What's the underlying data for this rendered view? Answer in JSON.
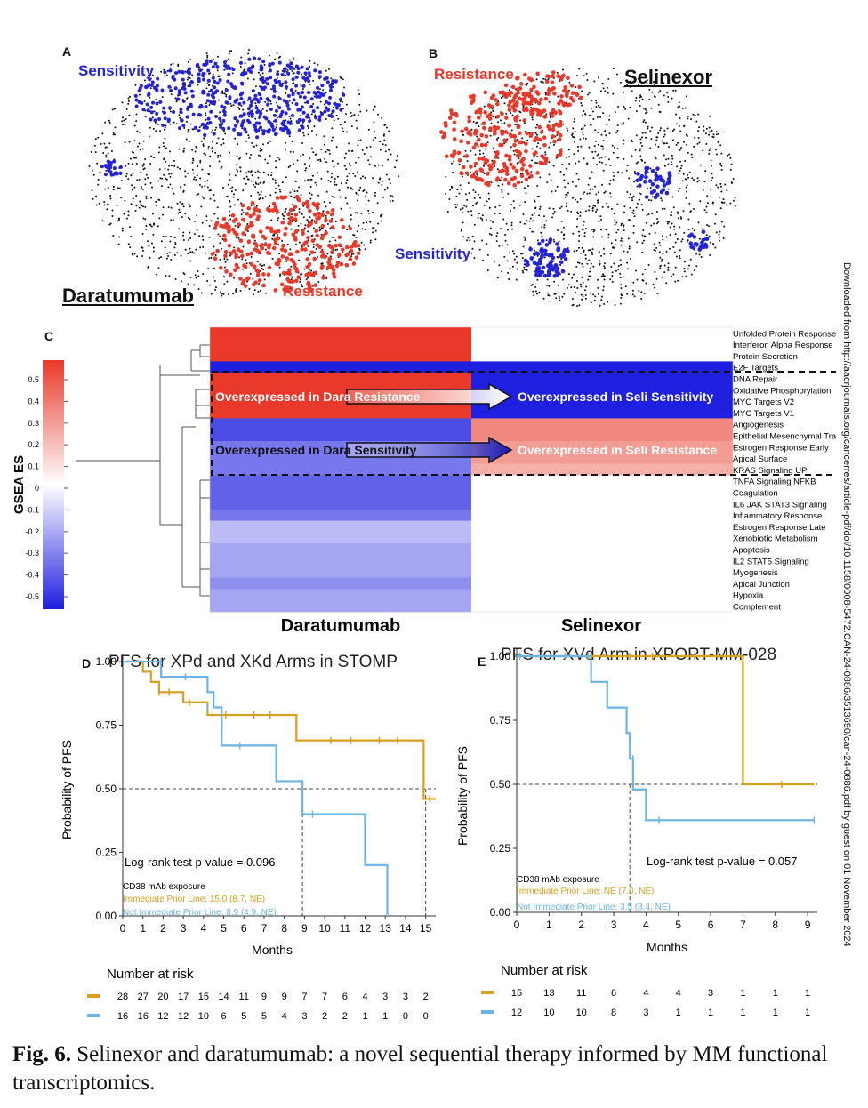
{
  "panelA": {
    "letter": "A",
    "sensitivity": "Sensitivity",
    "resistance": "Resistance",
    "drug": "Daratumumab"
  },
  "panelB": {
    "letter": "B",
    "sensitivity": "Sensitivity",
    "resistance": "Resistance",
    "drug": "Selinexor"
  },
  "panelC": {
    "letter": "C",
    "legend_title": "GSEA ES",
    "legend_ticks": [
      "0.5",
      "0.4",
      "0.3",
      "0.2",
      "0.1",
      "0",
      "-0.1",
      "-0.2",
      "-0.3",
      "-0.4",
      "-0.5"
    ],
    "col_labels": [
      "Daratumumab",
      "Selinexor"
    ],
    "pathways": [
      "Unfolded Protein Response",
      "Interferon Alpha Response",
      "Protein Secretion",
      "E2F Targets",
      "DNA Repair",
      "Oxidative Phosphorylation",
      "MYC Targets V2",
      "MYC Targets V1",
      "Angiogenesis",
      "Epithelial Mesenchymal Transition",
      "Estrogen Response Early",
      "Apical Surface",
      "KRAS Signaling UP",
      "TNFA Signaling NFKB",
      "Coagulation",
      "IL6 JAK STAT3 Signaling",
      "Inflammatory Response",
      "Estrogen Response Late",
      "Xenobiotic Metabolism",
      "Apoptosis",
      "IL2 STAT5 Signaling",
      "Myogenesis",
      "Apical Junction",
      "Hypoxia",
      "Complement"
    ],
    "dara_es": [
      0.5,
      0.5,
      0.5,
      -0.5,
      0.5,
      0.5,
      0.5,
      0.5,
      -0.4,
      -0.4,
      -0.3,
      -0.3,
      -0.3,
      -0.35,
      -0.35,
      -0.35,
      -0.3,
      -0.15,
      -0.15,
      -0.2,
      -0.2,
      -0.2,
      -0.25,
      -0.2,
      -0.2
    ],
    "seli_es": [
      0,
      0,
      0,
      -0.5,
      -0.5,
      -0.5,
      -0.5,
      -0.5,
      0.3,
      0.3,
      0.25,
      0.25,
      0.2,
      0,
      0,
      0,
      0,
      0,
      0,
      0,
      0,
      0,
      0,
      0,
      0
    ],
    "arrow1_left": "Overexpressed in Dara Resistance",
    "arrow1_right": "Overexpressed in Seli Sensitivity",
    "arrow2_left": "Overexpressed in Dara Sensitivity",
    "arrow2_right": "Overexpressed in Seli Resistance"
  },
  "panelD": {
    "letter": "D",
    "title": "PFS for XPd and XKd Arms in STOMP",
    "ylabel": "Probability of PFS",
    "xlabel": "Months",
    "pvalue": "Log-rank test p-value = 0.096",
    "legend_title": "CD38 mAb exposure",
    "legend_orange": "Immediate Prior Line: 15.0 (8.7, NE)",
    "legend_blue": "Not Immediate Prior Line: 8.9 (4.9, NE)",
    "yticks": [
      "1.00",
      "0.75",
      "0.50",
      "0.25",
      "0.00"
    ],
    "xticks": [
      "0",
      "1",
      "2",
      "3",
      "4",
      "5",
      "6",
      "7",
      "8",
      "9",
      "10",
      "11",
      "12",
      "13",
      "14",
      "15"
    ],
    "risk_title": "Number at risk",
    "risk_orange": [
      "28",
      "27",
      "20",
      "17",
      "15",
      "14",
      "11",
      "9",
      "9",
      "7",
      "7",
      "6",
      "4",
      "3",
      "3",
      "2"
    ],
    "risk_blue": [
      "16",
      "16",
      "12",
      "12",
      "10",
      "6",
      "5",
      "5",
      "4",
      "3",
      "2",
      "2",
      "1",
      "1",
      "0",
      "0"
    ]
  },
  "panelE": {
    "letter": "E",
    "title": "PFS for XVd Arm in XPORT-MM-028",
    "ylabel": "Probability of PFS",
    "xlabel": "Months",
    "pvalue": "Log-rank test p-value = 0.057",
    "legend_title": "CD38 mAb exposure",
    "legend_orange": "Immediate Prior Line: NE (7.0, NE)",
    "legend_blue": "Not Immediate Prior Line: 3.5 (3.4, NE)",
    "yticks": [
      "1.00",
      "0.75",
      "0.50",
      "0.25",
      "0.00"
    ],
    "xticks": [
      "0",
      "1",
      "2",
      "3",
      "4",
      "5",
      "6",
      "7",
      "8",
      "9"
    ],
    "risk_title": "Number at risk",
    "risk_orange": [
      "15",
      "13",
      "11",
      "6",
      "4",
      "4",
      "3",
      "1",
      "1",
      "1"
    ],
    "risk_blue": [
      "12",
      "10",
      "10",
      "8",
      "3",
      "1",
      "1",
      "1",
      "1",
      "1"
    ]
  },
  "side_note": "Downloaded from http://aacrjournals.org/cancerres/article-pdf/doi/10.1158/0008-5472.CAN-24-0886/3513690/can-24-0886.pdf by guest on 01 November 2024",
  "caption": {
    "label": "Fig. 6.",
    "text": " Selinexor and daratumumab: a novel sequential therapy informed by MM functional transcriptomics."
  },
  "colors": {
    "orange": "#d9a01e",
    "blue": "#6cb4e4",
    "red": "#e8392a",
    "darkblue": "#2424d6"
  }
}
